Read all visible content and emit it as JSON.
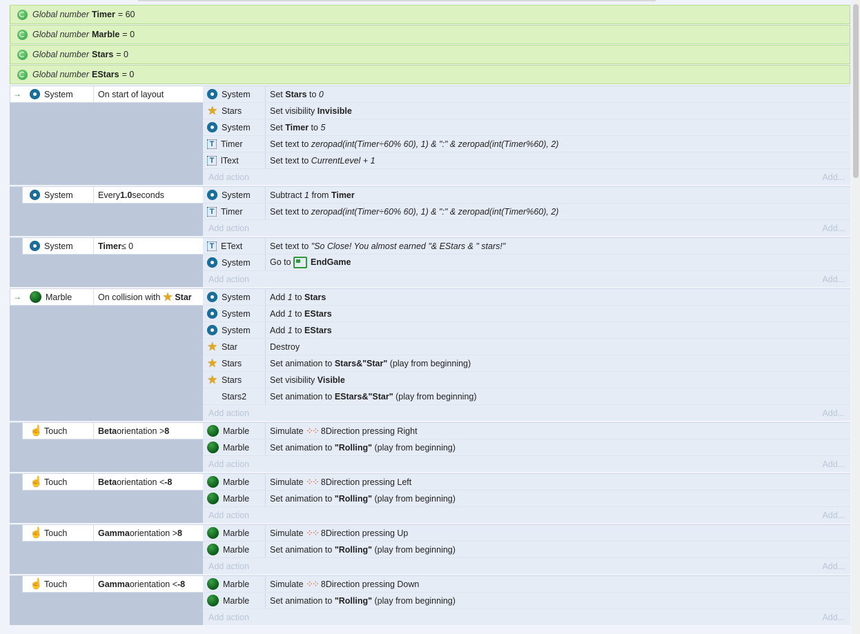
{
  "globals": [
    {
      "prefix": "Global number",
      "name": "Timer",
      "suffix": "= 60"
    },
    {
      "prefix": "Global number",
      "name": "Marble",
      "suffix": "= 0"
    },
    {
      "prefix": "Global number",
      "name": "Stars",
      "suffix": "= 0"
    },
    {
      "prefix": "Global number",
      "name": "EStars",
      "suffix": "= 0"
    }
  ],
  "add_action_label": "Add action",
  "add_label": "Add...",
  "events": [
    {
      "arrow": true,
      "cond_icon": "gear-icon",
      "cond_obj": "System",
      "cond_html": "On start of layout",
      "actions": [
        {
          "icon": "gear-icon",
          "obj": "System",
          "html": "Set <b>Stars</b> to <i>0</i>"
        },
        {
          "icon": "star-icon",
          "obj": "Stars",
          "html": "Set visibility <b>Invisible</b>"
        },
        {
          "icon": "gear-icon",
          "obj": "System",
          "html": "Set <b>Timer</b> to <i>5</i>"
        },
        {
          "icon": "text-icon",
          "obj": "Timer",
          "html": "Set text to <i>zeropad(int(Timer÷60% 60), 1) &amp; \":\" &amp; zeropad(int(Timer%60), 2)</i>"
        },
        {
          "icon": "text-icon",
          "obj": "lText",
          "html": "Set text to <i>CurrentLevel + 1</i>"
        }
      ]
    },
    {
      "arrow": false,
      "cond_icon": "gear-icon",
      "cond_obj": "System",
      "cond_html": "Every <b>1.0</b> seconds",
      "actions": [
        {
          "icon": "gear-icon",
          "obj": "System",
          "html": "Subtract <i>1</i> from <b>Timer</b>"
        },
        {
          "icon": "text-icon",
          "obj": "Timer",
          "html": "Set text to <i>zeropad(int(Timer÷60% 60), 1) &amp; \":\" &amp; zeropad(int(Timer%60), 2)</i>"
        }
      ]
    },
    {
      "arrow": false,
      "cond_icon": "gear-icon",
      "cond_obj": "System",
      "cond_html": "<b>Timer</b> ≤ 0",
      "actions": [
        {
          "icon": "text-icon",
          "obj": "EText",
          "html": "Set text to <i>\"So Close! You almost earned \"&amp; EStars &amp; \" stars!\"</i>"
        },
        {
          "icon": "gear-icon",
          "obj": "System",
          "html": "Go to <span class=\"layout-ic\"></span><b>EndGame</b>"
        }
      ]
    },
    {
      "arrow": true,
      "cond_icon": "marble-icon",
      "cond_obj": "Marble",
      "cond_html": "On collision with <span class=\"ic star\" style=\"margin:0 3px\">★</span><b>Star</b>",
      "actions": [
        {
          "icon": "gear-icon",
          "obj": "System",
          "html": "Add <i>1</i> to <b>Stars</b>"
        },
        {
          "icon": "gear-icon",
          "obj": "System",
          "html": "Add <i>1</i> to <b>EStars</b>"
        },
        {
          "icon": "gear-icon",
          "obj": "System",
          "html": "Add <i>1</i> to <b>EStars</b>"
        },
        {
          "icon": "star-icon",
          "obj": "Star",
          "html": "Destroy"
        },
        {
          "icon": "star-icon",
          "obj": "Stars",
          "html": "Set animation to <b>Stars&amp;\"Star\"</b> (play from beginning)"
        },
        {
          "icon": "star-icon",
          "obj": "Stars",
          "html": "Set visibility <b>Visible</b>"
        },
        {
          "icon": "none",
          "obj": "Stars2",
          "html": "Set animation to <b>EStars&amp;\"Star\"</b> (play from beginning)"
        }
      ]
    },
    {
      "arrow": false,
      "cond_icon": "touch-icon",
      "cond_obj": "Touch",
      "cond_html": "<b>Beta</b> orientation &gt; <b>8</b>",
      "actions": [
        {
          "icon": "marble-icon",
          "obj": "Marble",
          "html": "Simulate <span class=\"dots\">⁘⁘</span>8Direction pressing Right"
        },
        {
          "icon": "marble-icon",
          "obj": "Marble",
          "html": "Set animation to <b>\"Rolling\"</b> (play from beginning)"
        }
      ]
    },
    {
      "arrow": false,
      "cond_icon": "touch-icon",
      "cond_obj": "Touch",
      "cond_html": "<b>Beta</b> orientation &lt; <b>-8</b>",
      "actions": [
        {
          "icon": "marble-icon",
          "obj": "Marble",
          "html": "Simulate <span class=\"dots\">⁘⁘</span>8Direction pressing Left"
        },
        {
          "icon": "marble-icon",
          "obj": "Marble",
          "html": "Set animation to <b>\"Rolling\"</b> (play from beginning)"
        }
      ]
    },
    {
      "arrow": false,
      "cond_icon": "touch-icon",
      "cond_obj": "Touch",
      "cond_html": "<b>Gamma</b> orientation &gt; <b>8</b>",
      "actions": [
        {
          "icon": "marble-icon",
          "obj": "Marble",
          "html": "Simulate <span class=\"dots\">⁘⁘</span>8Direction pressing Up"
        },
        {
          "icon": "marble-icon",
          "obj": "Marble",
          "html": "Set animation to <b>\"Rolling\"</b> (play from beginning)"
        }
      ]
    },
    {
      "arrow": false,
      "cond_icon": "touch-icon",
      "cond_obj": "Touch",
      "cond_html": "<b>Gamma</b> orientation &lt; <b>-8</b>",
      "actions": [
        {
          "icon": "marble-icon",
          "obj": "Marble",
          "html": "Simulate <span class=\"dots\">⁘⁘</span>8Direction pressing Down"
        },
        {
          "icon": "marble-icon",
          "obj": "Marble",
          "html": "Set animation to <b>\"Rolling\"</b> (play from beginning)"
        }
      ]
    }
  ]
}
